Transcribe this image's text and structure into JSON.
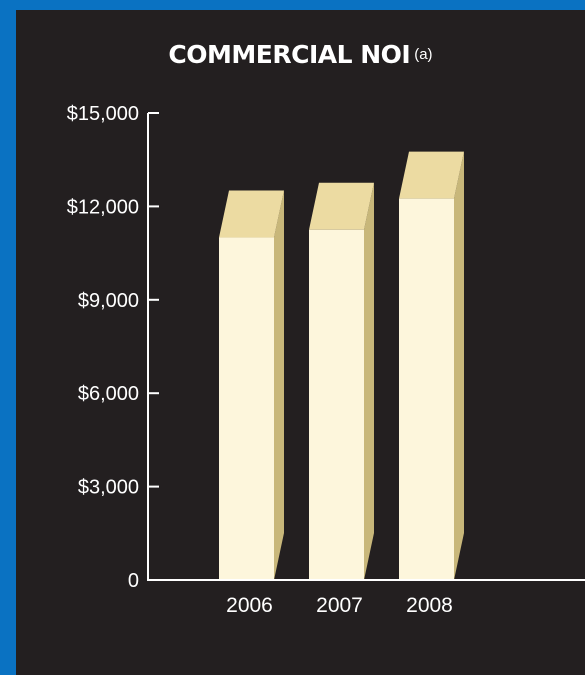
{
  "chart_data": {
    "type": "bar",
    "title": "COMMERCIAL NOI",
    "title_note": "(a)",
    "categories": [
      "2006",
      "2007",
      "2008"
    ],
    "values": [
      11000,
      11250,
      12250
    ],
    "ylim": [
      0,
      15000
    ],
    "yticks": [
      0,
      3000,
      6000,
      9000,
      12000,
      15000
    ],
    "ytick_labels": [
      "0",
      "$3,000",
      "$6,000",
      "$9,000",
      "$12,000",
      "$15,000"
    ],
    "xlabel": "",
    "ylabel": "",
    "grid": false,
    "bar_style": "3d",
    "colors": {
      "background": "#231f20",
      "frame": "#0a72c2",
      "bar_front": "#fdf6dc",
      "bar_top": "#ecdba2",
      "bar_side": "#c8b77a",
      "axis": "#ffffff",
      "text": "#ffffff"
    }
  }
}
